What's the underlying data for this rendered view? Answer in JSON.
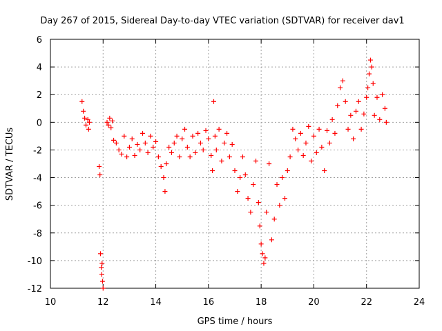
{
  "chart_data": {
    "type": "scatter",
    "title": "Day 267 of 2015, Sidereal Day-to-day VTEC variation (SDTVAR) for receiver dav1",
    "xlabel": "GPS time / hours",
    "ylabel": "SDTVAR / TECUs",
    "xlim": [
      10,
      24
    ],
    "ylim": [
      -12,
      6
    ],
    "xticks": [
      10,
      12,
      14,
      16,
      18,
      20,
      22,
      24
    ],
    "yticks": [
      -12,
      -10,
      -8,
      -6,
      -4,
      -2,
      0,
      2,
      4,
      6
    ],
    "grid": true,
    "marker": "+",
    "color": "#ff0000",
    "series": [
      {
        "name": "dav1",
        "x": [
          11.2,
          11.25,
          11.3,
          11.35,
          11.42,
          11.45,
          11.48,
          11.85,
          11.88,
          11.9,
          11.93,
          11.95,
          11.96,
          11.98,
          12.0,
          12.15,
          12.2,
          12.25,
          12.3,
          12.35,
          12.4,
          12.5,
          12.6,
          12.7,
          12.8,
          12.9,
          13.0,
          13.1,
          13.2,
          13.3,
          13.4,
          13.5,
          13.6,
          13.7,
          13.8,
          13.9,
          14.0,
          14.1,
          14.2,
          14.3,
          14.35,
          14.4,
          14.5,
          14.6,
          14.7,
          14.8,
          14.9,
          15.0,
          15.1,
          15.2,
          15.3,
          15.4,
          15.5,
          15.6,
          15.7,
          15.8,
          15.9,
          16.0,
          16.1,
          16.15,
          16.2,
          16.25,
          16.3,
          16.4,
          16.5,
          16.6,
          16.7,
          16.8,
          16.9,
          17.0,
          17.1,
          17.2,
          17.3,
          17.4,
          17.5,
          17.6,
          17.7,
          17.8,
          17.9,
          17.95,
          18.0,
          18.05,
          18.1,
          18.15,
          18.2,
          18.3,
          18.4,
          18.5,
          18.6,
          18.7,
          18.8,
          18.9,
          19.0,
          19.1,
          19.2,
          19.3,
          19.4,
          19.5,
          19.6,
          19.7,
          19.8,
          19.9,
          20.0,
          20.1,
          20.2,
          20.3,
          20.4,
          20.5,
          20.6,
          20.7,
          20.8,
          20.9,
          21.0,
          21.1,
          21.2,
          21.3,
          21.4,
          21.5,
          21.6,
          21.7,
          21.8,
          21.9,
          22.0,
          22.05,
          22.1,
          22.15,
          22.2,
          22.25,
          22.3,
          22.4,
          22.5,
          22.6,
          22.7,
          22.75
        ],
        "y": [
          1.5,
          0.8,
          0.3,
          -0.2,
          0.2,
          -0.5,
          0.0,
          -3.2,
          -3.8,
          -9.5,
          -10.5,
          -11.0,
          -10.2,
          -11.5,
          -12.0,
          0.0,
          -0.2,
          0.3,
          -0.4,
          0.1,
          -1.3,
          -1.5,
          -2.0,
          -2.3,
          -1.0,
          -2.5,
          -1.8,
          -1.2,
          -2.4,
          -1.6,
          -2.0,
          -0.8,
          -1.5,
          -2.2,
          -1.0,
          -1.8,
          -1.4,
          -2.5,
          -3.2,
          -4.0,
          -5.0,
          -3.0,
          -1.8,
          -2.2,
          -1.5,
          -1.0,
          -2.5,
          -1.2,
          -0.5,
          -1.8,
          -2.5,
          -1.0,
          -2.2,
          -0.8,
          -1.5,
          -2.0,
          -0.6,
          -1.2,
          -2.4,
          -3.5,
          1.5,
          -1.0,
          -2.0,
          -0.5,
          -2.8,
          -1.5,
          -0.8,
          -2.5,
          -1.6,
          -3.5,
          -5.0,
          -4.0,
          -2.5,
          -3.8,
          -5.5,
          -6.5,
          -4.5,
          -2.8,
          -5.8,
          -7.5,
          -8.8,
          -9.5,
          -10.2,
          -9.8,
          -6.5,
          -3.0,
          -8.5,
          -7.0,
          -4.5,
          -6.0,
          -4.0,
          -5.5,
          -3.5,
          -2.5,
          -0.5,
          -1.2,
          -2.0,
          -0.8,
          -2.4,
          -1.5,
          -0.3,
          -2.8,
          -1.0,
          -2.2,
          -0.5,
          -1.8,
          -3.5,
          -0.6,
          -1.5,
          0.2,
          -0.8,
          1.2,
          2.5,
          3.0,
          1.5,
          -0.5,
          0.5,
          -1.2,
          0.8,
          1.5,
          -0.5,
          0.6,
          1.8,
          2.5,
          3.5,
          4.5,
          4.0,
          2.8,
          0.5,
          1.8,
          0.2,
          2.0,
          1.0,
          0.0
        ]
      }
    ]
  }
}
